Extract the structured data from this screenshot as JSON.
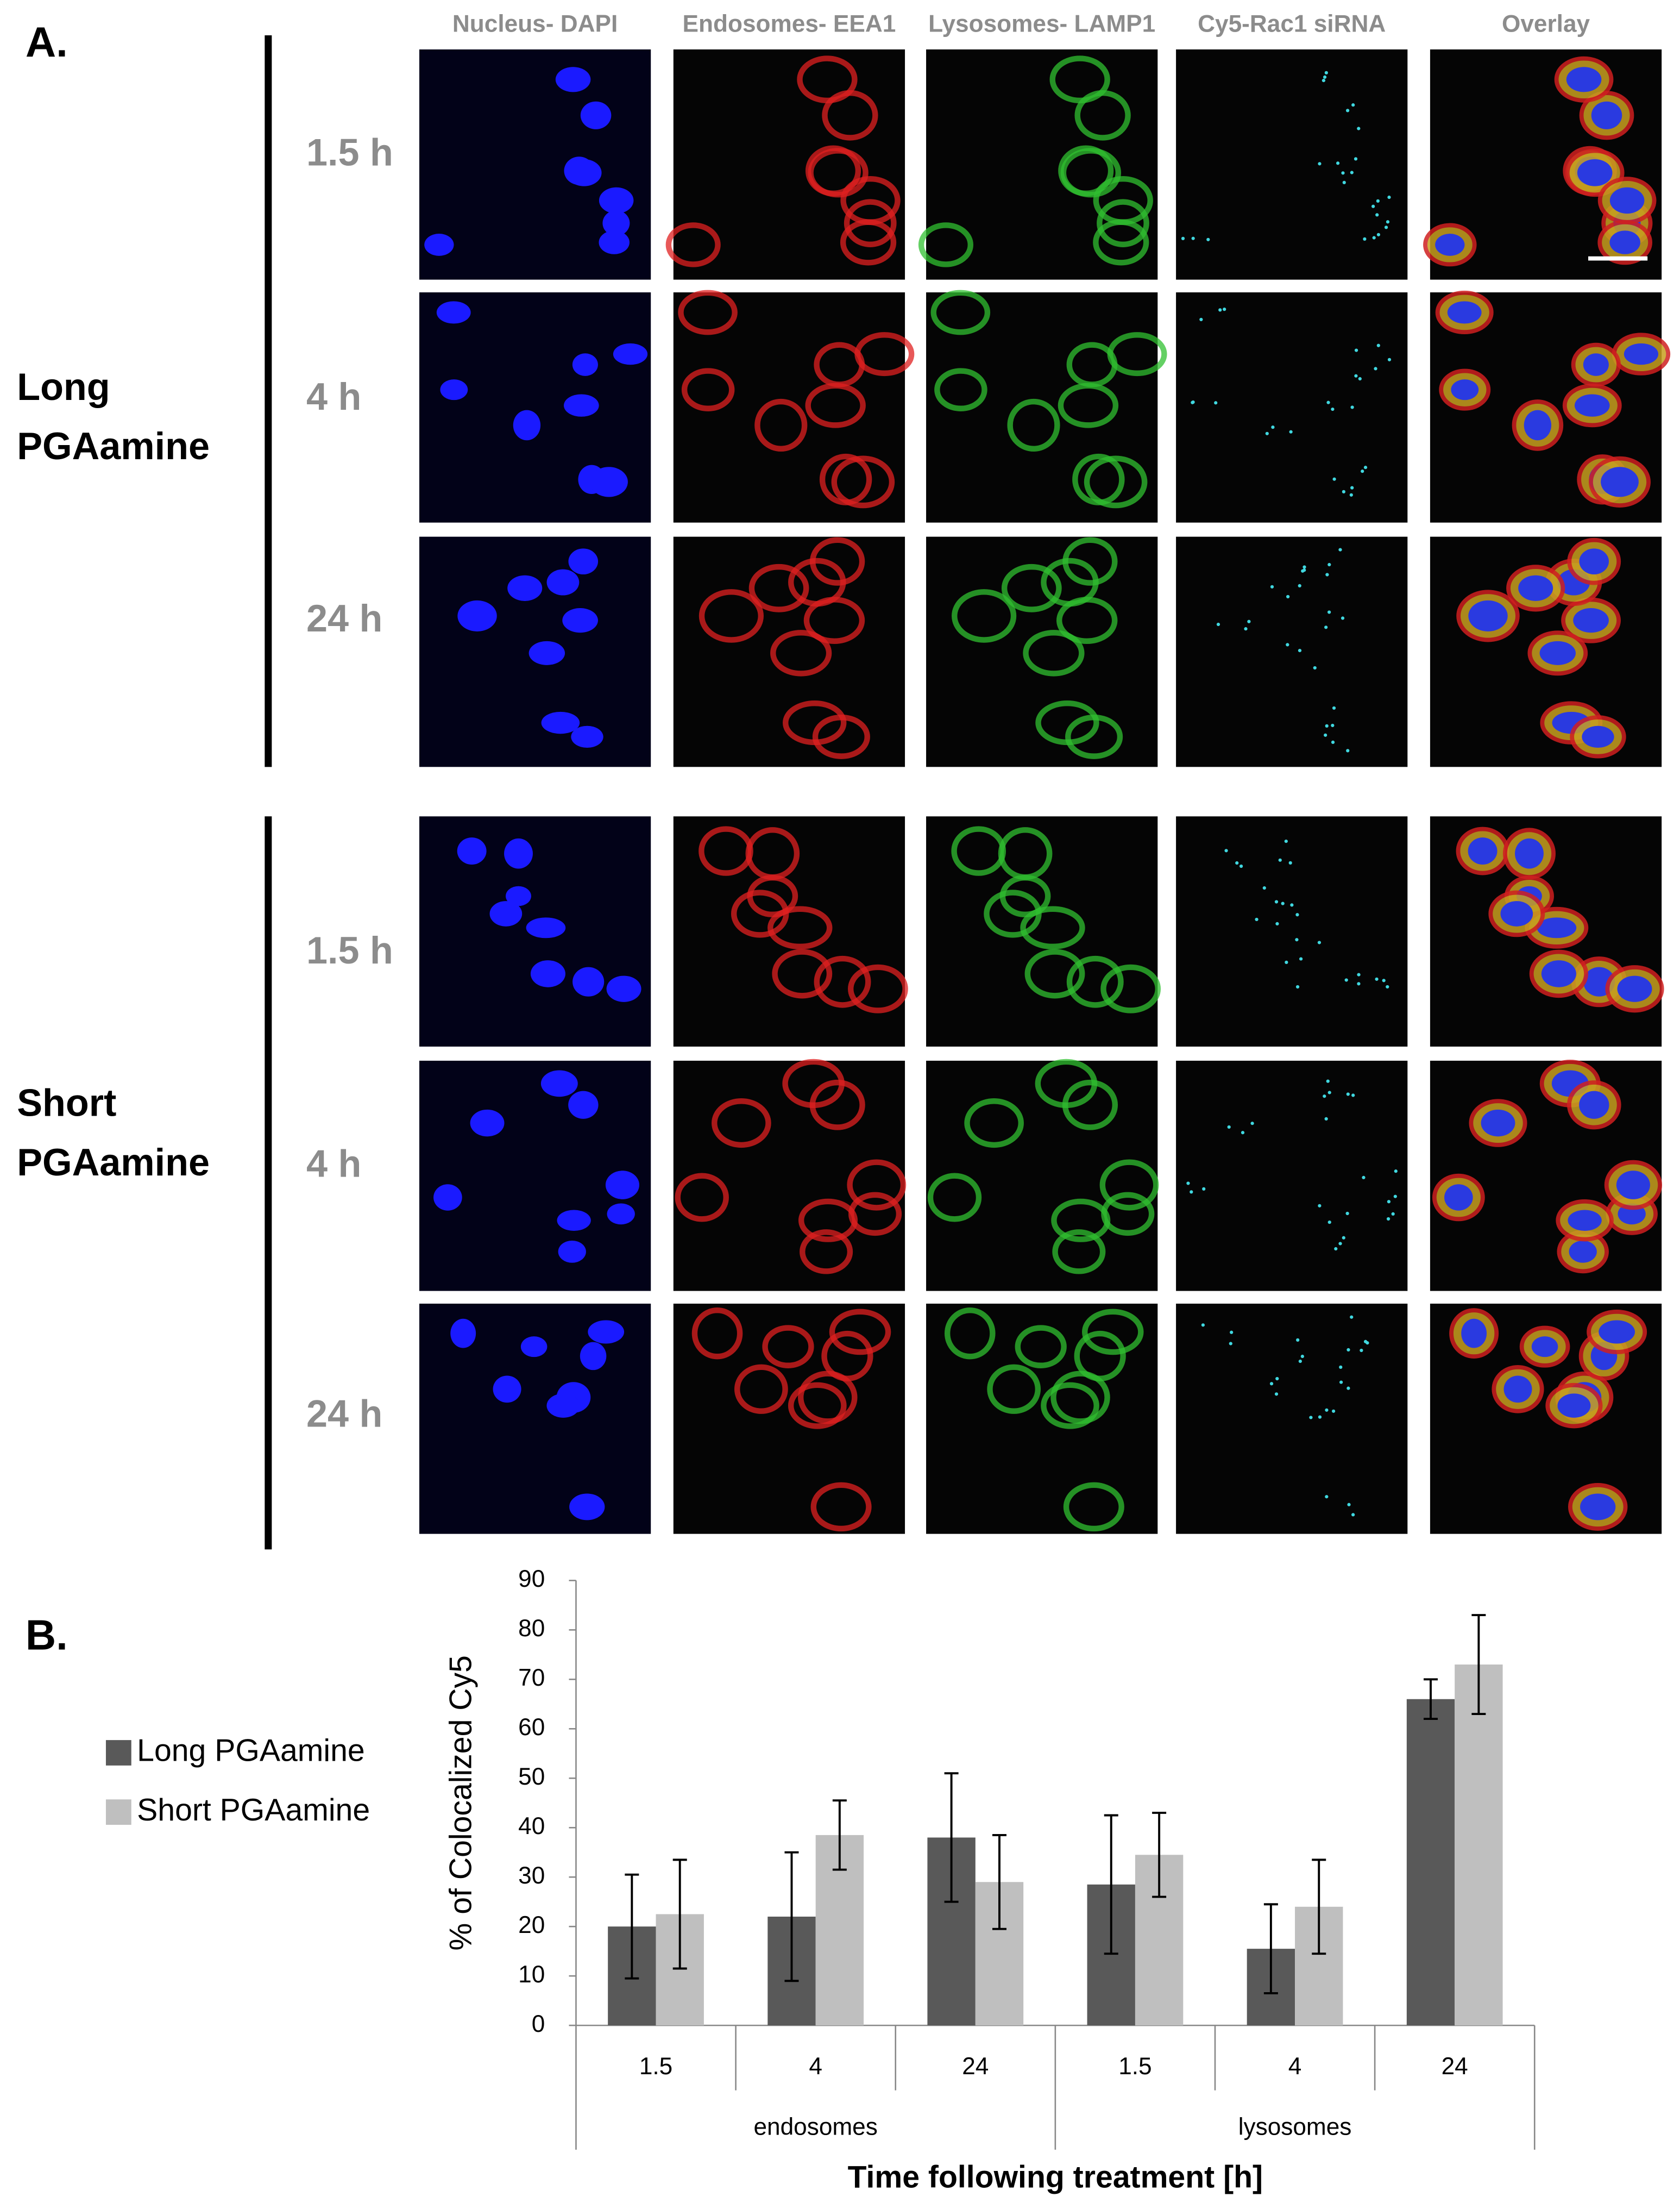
{
  "panel_a": {
    "label": "A.",
    "columns": [
      "Nucleus- DAPI",
      "Endosomes- EEA1",
      "Lysosomes- LAMP1",
      "Cy5-Rac1 siRNA",
      "Overlay"
    ],
    "groups": [
      {
        "label_lines": [
          "Long",
          "PGAamine"
        ],
        "rows": [
          "1.5 h",
          "4 h",
          "24 h"
        ]
      },
      {
        "label_lines": [
          "Short",
          "PGAamine"
        ],
        "rows": [
          "1.5 h",
          "4 h",
          "24 h"
        ]
      }
    ]
  },
  "chart_data": {
    "type": "bar",
    "panel_label": "B.",
    "y_label": "% of Colocalized Cy5",
    "x_label": "Time following treatment [h]",
    "groups": [
      {
        "name": "endosomes",
        "categories": [
          "1.5",
          "4",
          "24"
        ]
      },
      {
        "name": "lysosomes",
        "categories": [
          "1.5",
          "4",
          "24"
        ]
      }
    ],
    "series": [
      {
        "name": "Long PGAamine",
        "color": "#595959",
        "values": [
          20,
          22,
          38,
          28.5,
          15.5,
          66
        ],
        "errors": [
          10.5,
          13,
          13,
          14,
          9,
          4
        ]
      },
      {
        "name": "Short PGAamine",
        "color": "#bfbfbf",
        "values": [
          22.5,
          38.5,
          29,
          34.5,
          24,
          73
        ],
        "errors": [
          11,
          7,
          9.5,
          8.5,
          9.5,
          10
        ]
      }
    ],
    "ylim": [
      0,
      90
    ],
    "yticks": [
      0,
      10,
      20,
      30,
      40,
      50,
      60,
      70,
      80,
      90
    ],
    "grid": false
  }
}
